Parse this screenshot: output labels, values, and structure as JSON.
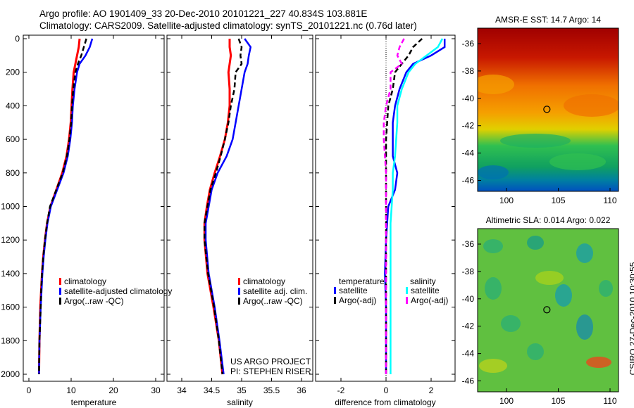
{
  "title_line1": "Argo profile: AO 1901409_33 20-Dec-2010 20101221_227 40.834S 103.881E",
  "title_line2": "Climatology: CARS2009. Satellite-adjusted climatology: synTS_20101221.nc (0.76d later)",
  "side_label": "CSIRO 27-Dec-2010 10:30:55",
  "project_line1": "US ARGO PROJECT",
  "project_line2": "PI: STEPHEN RISER",
  "colors": {
    "climatology": "#ff0000",
    "satellite": "#0000ff",
    "argo": "#000000",
    "sat_sal": "#00ffff",
    "argo_sal": "#ff00ff"
  },
  "chart_data": [
    {
      "type": "line",
      "xlabel": "temperature",
      "ylabel": "",
      "xlim": [
        -1.5,
        31.5
      ],
      "ylim": [
        2050,
        0
      ],
      "xticks": [
        "0",
        "10",
        "20",
        "30"
      ],
      "yticks": [
        "0",
        "200",
        "400",
        "600",
        "800",
        "1000",
        "1200",
        "1400",
        "1600",
        "1800",
        "2000"
      ],
      "legend": [
        "climatology",
        "satellite-adjusted climatology",
        "Argo(..raw -QC)"
      ],
      "depth": [
        0,
        50,
        100,
        150,
        200,
        300,
        400,
        500,
        600,
        700,
        800,
        900,
        1000,
        1100,
        1200,
        1300,
        1400,
        1500,
        1600,
        1800,
        2000
      ],
      "series": [
        {
          "name": "climatology",
          "values": [
            12,
            11.8,
            11.4,
            11,
            10.6,
            10.3,
            10.1,
            9.9,
            9.5,
            8.9,
            7.9,
            6.5,
            5.1,
            4.3,
            3.8,
            3.4,
            3.1,
            2.9,
            2.7,
            2.5,
            2.4
          ]
        },
        {
          "name": "satellite-adjusted climatology",
          "values": [
            15,
            14.4,
            13.4,
            12,
            11.4,
            10.8,
            10.4,
            10.2,
            9.8,
            9.2,
            8.2,
            6.7,
            5.2,
            4.4,
            3.9,
            3.5,
            3.2,
            3.0,
            2.8,
            2.5,
            2.4
          ]
        },
        {
          "name": "Argo(..raw -QC)",
          "values": [
            13.6,
            13,
            12.4,
            11.6,
            11,
            10.5,
            10.2,
            10,
            9.6,
            9,
            8,
            6.5,
            5,
            4.3,
            3.8,
            3.4,
            3.1,
            2.9,
            2.8,
            2.5,
            2.4
          ]
        }
      ]
    },
    {
      "type": "line",
      "xlabel": "salinity",
      "xlim": [
        33.8,
        36.1
      ],
      "ylim": [
        2050,
        0
      ],
      "xticks": [
        "34",
        "34.5",
        "35",
        "35.5",
        "36"
      ],
      "legend": [
        "climatology",
        "satellite adj. clim.",
        "Argo(..raw -QC)"
      ],
      "depth": [
        0,
        50,
        100,
        150,
        200,
        300,
        400,
        500,
        600,
        700,
        800,
        900,
        1000,
        1100,
        1200,
        1400,
        1600,
        1800,
        2000
      ],
      "series": [
        {
          "name": "climatology",
          "values": [
            34.8,
            34.8,
            34.82,
            34.8,
            34.78,
            34.8,
            34.8,
            34.77,
            34.72,
            34.64,
            34.55,
            34.47,
            34.42,
            34.38,
            34.38,
            34.43,
            34.53,
            34.62,
            34.68
          ]
        },
        {
          "name": "satellite adj. clim.",
          "values": [
            35.05,
            35.15,
            35.12,
            35.1,
            35.05,
            35,
            34.95,
            34.9,
            34.85,
            34.75,
            34.6,
            34.5,
            34.45,
            34.4,
            34.4,
            34.45,
            34.55,
            34.63,
            34.7
          ]
        },
        {
          "name": "Argo(..raw -QC)",
          "values": [
            34.95,
            35,
            34.98,
            35.0,
            34.9,
            34.88,
            34.82,
            34.78,
            34.72,
            34.65,
            34.57,
            34.48,
            34.43,
            34.38,
            34.38,
            34.44,
            34.54,
            34.62,
            34.68
          ]
        }
      ]
    },
    {
      "type": "line",
      "xlabel": "difference from climatology",
      "xlim": [
        -3.2,
        3.1
      ],
      "ylim": [
        2050,
        0
      ],
      "xticks": [
        "-2",
        "0",
        "2"
      ],
      "legend_temperature_title": "temperature",
      "legend_salinity_title": "salinity",
      "legend": [
        "satellite",
        "Argo(-adj)",
        "satellite",
        "Argo(-adj)"
      ],
      "depth": [
        0,
        50,
        100,
        150,
        200,
        300,
        400,
        500,
        600,
        700,
        800,
        900,
        1000,
        1100,
        1200,
        1400,
        1600,
        1800,
        2000
      ],
      "series": [
        {
          "name": "temperature satellite",
          "values": [
            2.6,
            2.6,
            2,
            1.2,
            0.9,
            0.6,
            0.4,
            0.3,
            0.3,
            0.3,
            0.5,
            0.4,
            0.1,
            0.05,
            0,
            -0.05,
            0,
            0,
            0
          ]
        },
        {
          "name": "temperature Argo(-adj)",
          "values": [
            1.6,
            1.2,
            1,
            0.7,
            0.4,
            0.3,
            0.1,
            0.05,
            0,
            0,
            0,
            0,
            0,
            0,
            0,
            0,
            0,
            0,
            0
          ]
        },
        {
          "name": "salinity satellite",
          "values": [
            2.5,
            2.3,
            1.8,
            1.3,
            1,
            0.7,
            0.5,
            0.5,
            0.45,
            0.4,
            0.3,
            0.3,
            0.25,
            0.2,
            0.2,
            0.2,
            0.2,
            0.2,
            0.2
          ]
        },
        {
          "name": "salinity Argo(-adj)",
          "values": [
            0.8,
            0.6,
            0.5,
            0.7,
            0.2,
            0.2,
            0,
            -0.1,
            -0.1,
            -0.05,
            0,
            0,
            0,
            0,
            0,
            0,
            0,
            0,
            0
          ]
        }
      ]
    },
    {
      "type": "heatmap",
      "title": "AMSR-E SST: 14.7 Argo: 14",
      "xticks": [
        "100",
        "105",
        "110"
      ],
      "yticks": [
        "-36",
        "-38",
        "-40",
        "-42",
        "-44",
        "-46"
      ],
      "xlim": [
        97,
        111
      ],
      "ylim": [
        -47,
        -34.9
      ],
      "marker": [
        103.9,
        -40.8
      ]
    },
    {
      "type": "heatmap",
      "title": "Altimetric SLA: 0.014 Argo: 0.022",
      "xticks": [
        "100",
        "105",
        "110"
      ],
      "yticks": [
        "-36",
        "-38",
        "-40",
        "-42",
        "-44",
        "-46"
      ],
      "xlim": [
        97,
        111
      ],
      "ylim": [
        -47,
        -34.9
      ],
      "marker": [
        103.9,
        -40.8
      ]
    }
  ]
}
